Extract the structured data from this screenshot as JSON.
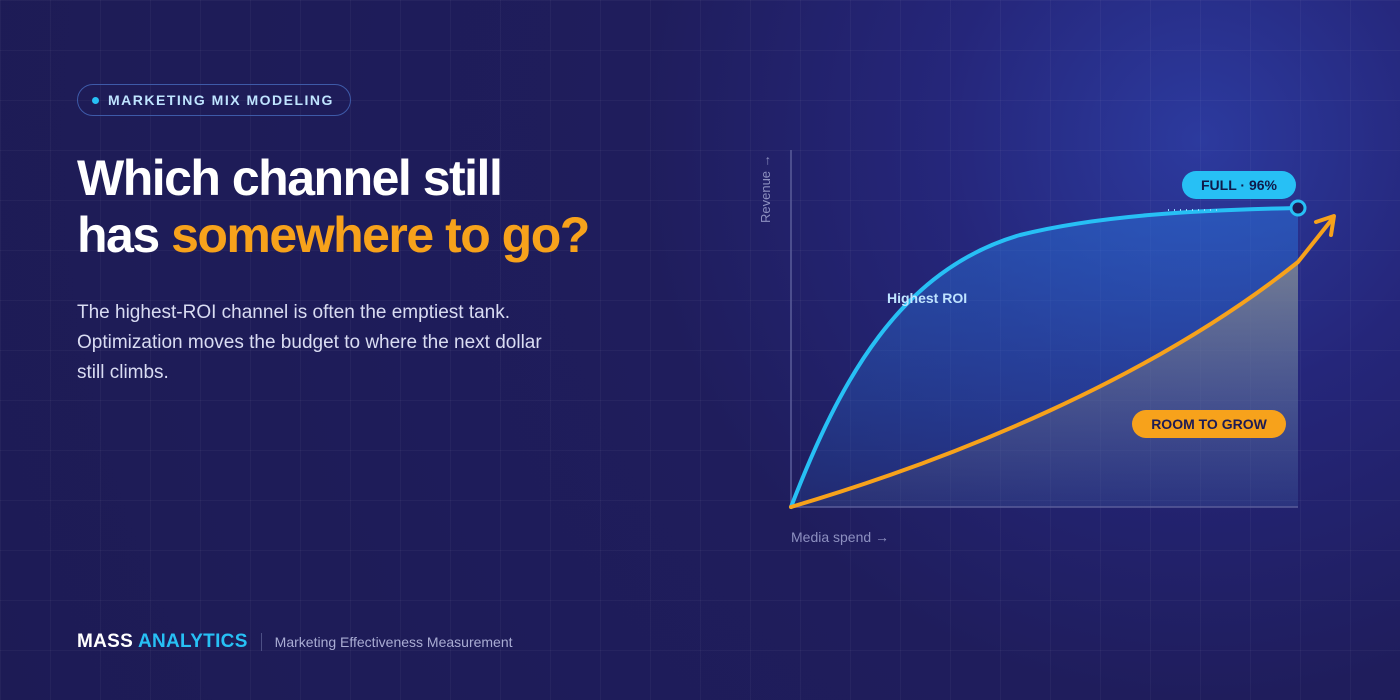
{
  "badge": "MARKETING MIX MODELING",
  "headline": {
    "line1": "Which channel still",
    "line2_plain": "has",
    "line2_highlight": "somewhere to go?"
  },
  "body": "The highest-ROI channel is often the emptiest tank. Optimization moves the budget to where the next dollar still climbs.",
  "chart": {
    "y_axis_label": "Revenue →",
    "x_axis_label": "Media spend →",
    "curve_label": "Highest ROI",
    "full_label": "FULL · 96%",
    "grow_label": "ROOM TO GROW"
  },
  "footer": {
    "brand_plain": "MASS",
    "brand_highlight": "ANALYTICS",
    "tagline": "Marketing Effectiveness Measurement"
  }
}
